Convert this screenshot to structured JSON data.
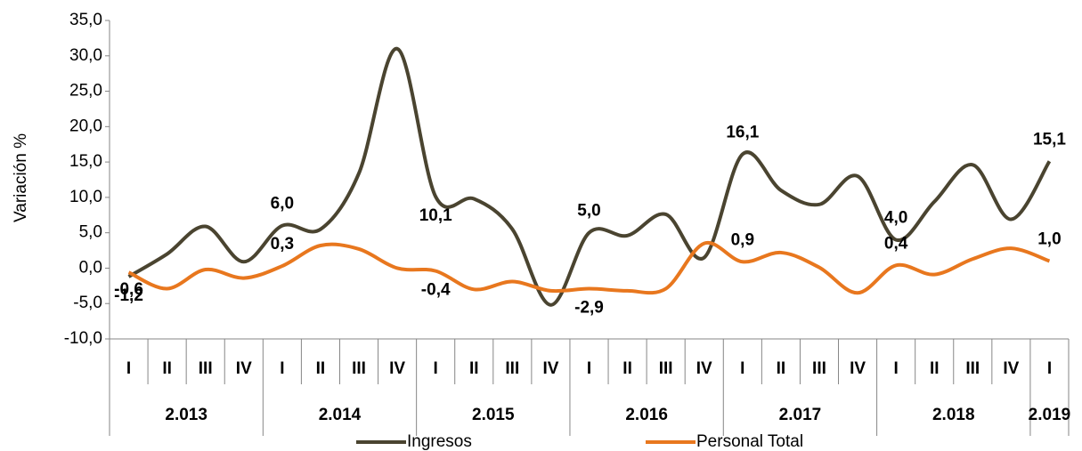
{
  "chart_data": {
    "type": "line",
    "ylabel": "Variación %",
    "groups": [
      {
        "name": "2.013",
        "categories": [
          "I",
          "II",
          "III",
          "IV"
        ]
      },
      {
        "name": "2.014",
        "categories": [
          "I",
          "II",
          "III",
          "IV"
        ]
      },
      {
        "name": "2.015",
        "categories": [
          "I",
          "II",
          "III",
          "IV"
        ]
      },
      {
        "name": "2.016",
        "categories": [
          "I",
          "II",
          "III",
          "IV"
        ]
      },
      {
        "name": "2.017",
        "categories": [
          "I",
          "II",
          "III",
          "IV"
        ]
      },
      {
        "name": "2.018",
        "categories": [
          "I",
          "II",
          "III",
          "IV"
        ]
      },
      {
        "name": "2.019",
        "categories": [
          "I"
        ]
      }
    ],
    "series": [
      {
        "name": "Ingresos",
        "color": "#4a4430",
        "label_color": "#000000",
        "values": [
          -1.2,
          2.0,
          5.9,
          0.9,
          6.0,
          5.5,
          13.4,
          31.0,
          10.1,
          9.8,
          5.5,
          -5.2,
          5.0,
          4.6,
          7.6,
          1.5,
          16.1,
          11.0,
          9.0,
          13.0,
          4.0,
          9.4,
          14.6,
          6.9,
          15.1
        ],
        "value_labels": [
          "-1,2",
          null,
          null,
          null,
          "6,0",
          null,
          null,
          null,
          "10,1",
          null,
          null,
          null,
          "5,0",
          null,
          null,
          null,
          "16,1",
          null,
          null,
          null,
          "4,0",
          null,
          null,
          null,
          "15,1"
        ]
      },
      {
        "name": "Personal Total",
        "color": "#e8771e",
        "label_color": "#e8771e",
        "values": [
          -0.6,
          -2.9,
          -0.2,
          -1.4,
          0.3,
          3.2,
          2.7,
          0.0,
          -0.4,
          -3.0,
          -1.9,
          -3.2,
          -2.9,
          -3.2,
          -2.9,
          3.5,
          0.9,
          2.2,
          0.1,
          -3.5,
          0.4,
          -0.9,
          1.3,
          2.8,
          1.0
        ],
        "value_labels": [
          "-0,6",
          null,
          null,
          null,
          "0,3",
          null,
          null,
          null,
          "-0,4",
          null,
          null,
          null,
          "-2,9",
          null,
          null,
          null,
          "0,9",
          null,
          null,
          null,
          "0,4",
          null,
          null,
          null,
          "1,0"
        ]
      }
    ],
    "ylim": [
      -10,
      35
    ],
    "yticks": [
      {
        "value": -10,
        "label": "-10,0"
      },
      {
        "value": -5,
        "label": "-5,0"
      },
      {
        "value": 0,
        "label": "0,0"
      },
      {
        "value": 5,
        "label": "5,0"
      },
      {
        "value": 10,
        "label": "10,0"
      },
      {
        "value": 15,
        "label": "15,0"
      },
      {
        "value": 20,
        "label": "20,0"
      },
      {
        "value": 25,
        "label": "25,0"
      },
      {
        "value": 30,
        "label": "30,0"
      },
      {
        "value": 35,
        "label": "35,0"
      }
    ],
    "legend": "bottom",
    "grid": false
  }
}
